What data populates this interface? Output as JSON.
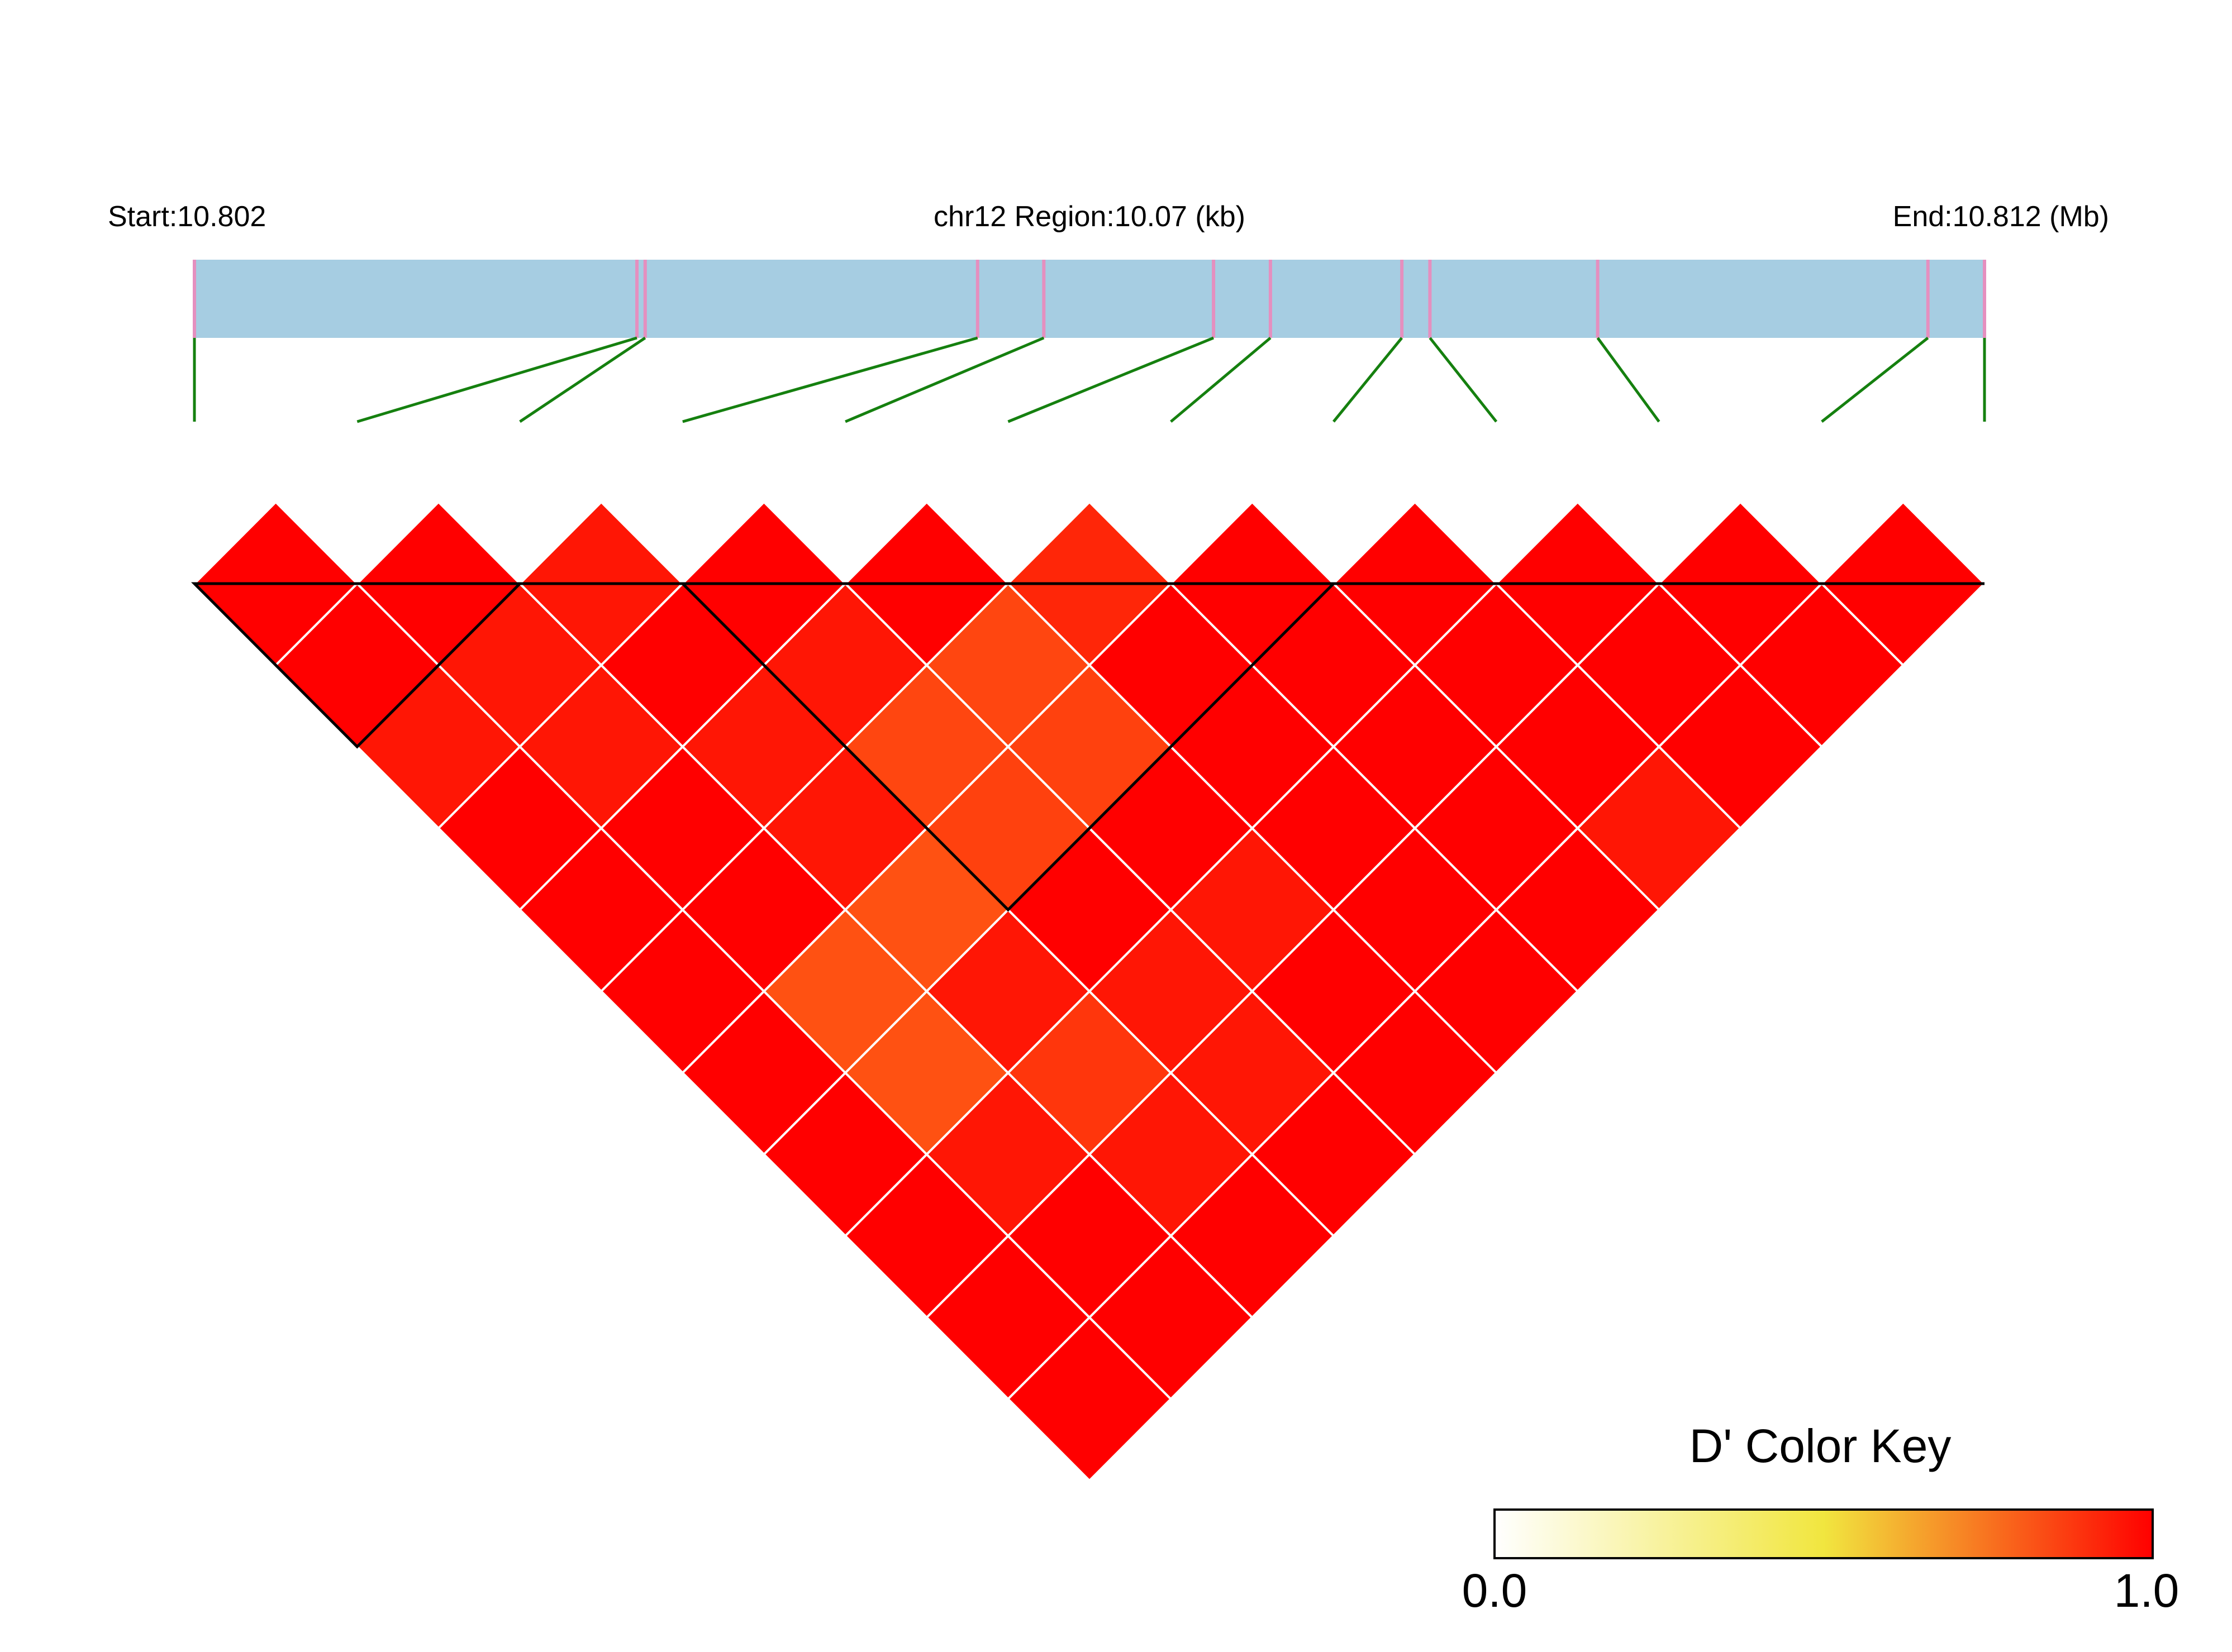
{
  "chart_data": {
    "type": "heatmap",
    "subtype": "LD block triangle plot",
    "header": {
      "start_label": "Start:10.802",
      "region_label": "chr12 Region:10.07 (kb)",
      "end_label": "End:10.812 (Mb)"
    },
    "region": {
      "chromosome": "chr12",
      "start_mb": 10.802,
      "end_mb": 10.812,
      "length_kb": 10.07
    },
    "snp_positions_relative": [
      0.0,
      0.2472,
      0.2518,
      0.4375,
      0.4745,
      0.5693,
      0.6011,
      0.6745,
      0.6902,
      0.7839,
      0.9684,
      1.0
    ],
    "snp_count": 12,
    "measure": "D'",
    "value_range": [
      0.0,
      1.0
    ],
    "d_prime_matrix": [
      [
        1.0,
        1.0,
        0.96,
        1.0,
        1.0,
        1.0,
        1.0,
        1.0,
        1.0,
        1.0,
        1.0
      ],
      [
        1.0,
        0.96,
        0.96,
        1.0,
        1.0,
        0.85,
        0.85,
        0.96,
        1.0,
        1.0
      ],
      [
        0.96,
        1.0,
        0.96,
        0.96,
        0.85,
        0.96,
        0.9,
        0.96,
        1.0
      ],
      [
        1.0,
        0.96,
        0.87,
        0.88,
        1.0,
        0.96,
        0.96,
        1.0
      ],
      [
        1.0,
        0.87,
        0.88,
        1.0,
        0.96,
        1.0,
        1.0
      ],
      [
        0.93,
        1.0,
        1.0,
        1.0,
        1.0,
        1.0
      ],
      [
        1.0,
        1.0,
        1.0,
        1.0,
        1.0
      ],
      [
        1.0,
        1.0,
        1.0,
        0.96
      ],
      [
        1.0,
        1.0,
        1.0
      ],
      [
        1.0,
        1.0
      ],
      [
        1.0
      ]
    ],
    "blocks": [
      {
        "first_snp": 1,
        "last_snp": 3
      },
      {
        "first_snp": 4,
        "last_snp": 8
      }
    ],
    "colors": {
      "gene_bar": "#a6cde2",
      "snp_tick": "#e58fbf",
      "connector": "#15800f",
      "cell_border": "#ffffff",
      "block_outline": "#000000",
      "scale_low": "#ffffff",
      "scale_mid": "#f1e63f",
      "scale_high": "#ff0000"
    },
    "color_key": {
      "title": "D' Color Key",
      "min_label": "0.0",
      "max_label": "1.0",
      "placement": "bottom-right"
    }
  }
}
